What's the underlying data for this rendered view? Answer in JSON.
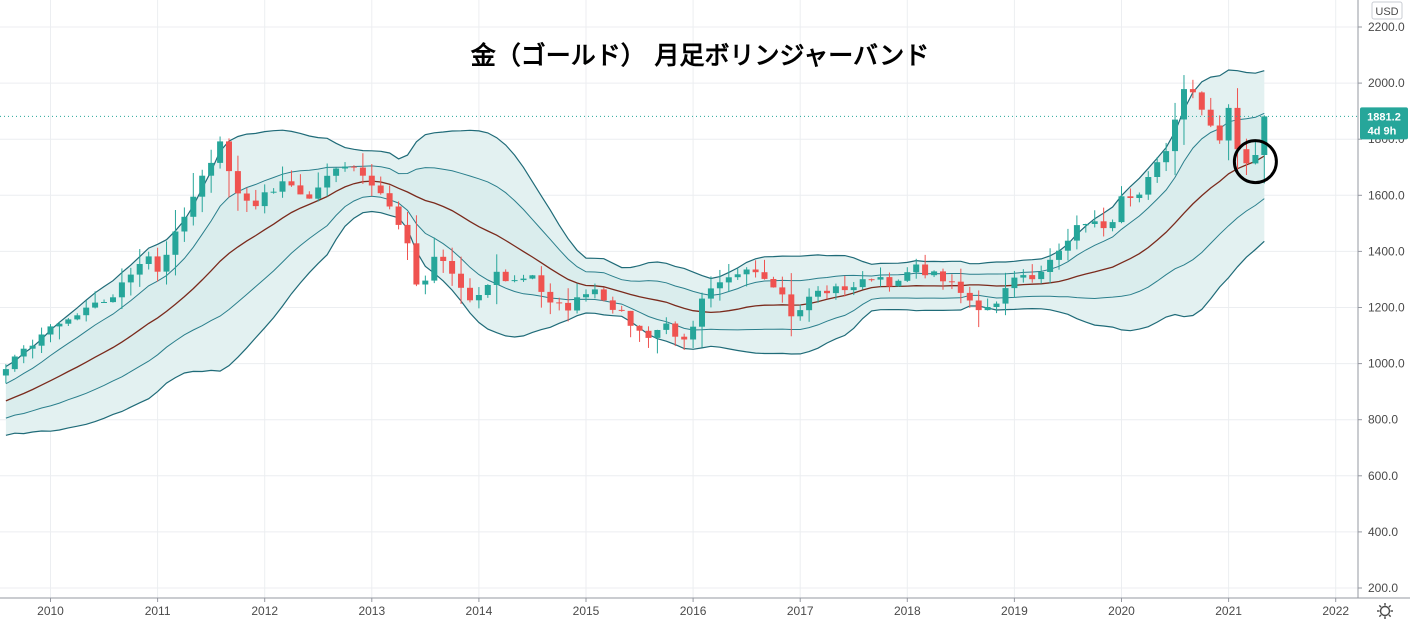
{
  "chart_data": {
    "type": "candlestick",
    "title": "金（ゴールド） 月足ボリンジャーバンド",
    "currency": "USD",
    "ylim": [
      160,
      2250
    ],
    "y_ticks": [
      200,
      400,
      600,
      800,
      1000,
      1200,
      1400,
      1600,
      1800,
      2000,
      2200
    ],
    "y_tick_labels": [
      "200.0",
      "400.0",
      "600.0",
      "800.0",
      "1000.0",
      "1200.0",
      "1400.0",
      "1600.0",
      "1800.0",
      "2000.0",
      "2200.0"
    ],
    "x_range": [
      2009.5,
      2022.4
    ],
    "x_ticks": [
      2010,
      2011,
      2012,
      2013,
      2014,
      2015,
      2016,
      2017,
      2018,
      2019,
      2020,
      2021,
      2022
    ],
    "x_tick_labels": [
      "2010",
      "2011",
      "2012",
      "2013",
      "2014",
      "2015",
      "2016",
      "2017",
      "2018",
      "2019",
      "2020",
      "2021",
      "2022"
    ],
    "last_price": 1881.2,
    "last_price_label": "1881.2",
    "time_left_label": "4d 9h",
    "highlight_circle": {
      "x": 2021.25,
      "y": 1720
    },
    "anchor_closes": [
      [
        2009.5,
        950
      ],
      [
        2009.9,
        1100
      ],
      [
        2010.3,
        1180
      ],
      [
        2010.6,
        1245
      ],
      [
        2010.9,
        1400
      ],
      [
        2011.0,
        1330
      ],
      [
        2011.3,
        1560
      ],
      [
        2011.6,
        1813
      ],
      [
        2011.7,
        1620
      ],
      [
        2011.9,
        1565
      ],
      [
        2012.2,
        1665
      ],
      [
        2012.4,
        1565
      ],
      [
        2012.6,
        1690
      ],
      [
        2012.8,
        1715
      ],
      [
        2012.95,
        1660
      ],
      [
        2013.1,
        1600
      ],
      [
        2013.3,
        1470
      ],
      [
        2013.45,
        1230
      ],
      [
        2013.6,
        1395
      ],
      [
        2013.75,
        1320
      ],
      [
        2013.95,
        1200
      ],
      [
        2014.15,
        1325
      ],
      [
        2014.3,
        1290
      ],
      [
        2014.5,
        1320
      ],
      [
        2014.65,
        1210
      ],
      [
        2014.85,
        1200
      ],
      [
        2015.05,
        1280
      ],
      [
        2015.3,
        1185
      ],
      [
        2015.55,
        1095
      ],
      [
        2015.75,
        1140
      ],
      [
        2015.95,
        1060
      ],
      [
        2016.1,
        1240
      ],
      [
        2016.3,
        1290
      ],
      [
        2016.5,
        1350
      ],
      [
        2016.65,
        1320
      ],
      [
        2016.8,
        1270
      ],
      [
        2016.95,
        1150
      ],
      [
        2017.1,
        1250
      ],
      [
        2017.35,
        1265
      ],
      [
        2017.55,
        1280
      ],
      [
        2017.7,
        1320
      ],
      [
        2017.9,
        1275
      ],
      [
        2018.05,
        1345
      ],
      [
        2018.2,
        1325
      ],
      [
        2018.35,
        1300
      ],
      [
        2018.5,
        1250
      ],
      [
        2018.65,
        1195
      ],
      [
        2018.85,
        1225
      ],
      [
        2019.0,
        1320
      ],
      [
        2019.2,
        1290
      ],
      [
        2019.4,
        1410
      ],
      [
        2019.55,
        1470
      ],
      [
        2019.7,
        1520
      ],
      [
        2019.85,
        1465
      ],
      [
        2020.0,
        1585
      ],
      [
        2020.15,
        1575
      ],
      [
        2020.3,
        1690
      ],
      [
        2020.45,
        1780
      ],
      [
        2020.55,
        1975
      ],
      [
        2020.65,
        1965
      ],
      [
        2020.8,
        1880
      ],
      [
        2020.95,
        1775
      ],
      [
        2021.0,
        1900
      ],
      [
        2021.1,
        1735
      ],
      [
        2021.2,
        1710
      ],
      [
        2021.3,
        1770
      ],
      [
        2021.38,
        1881.2
      ]
    ]
  }
}
